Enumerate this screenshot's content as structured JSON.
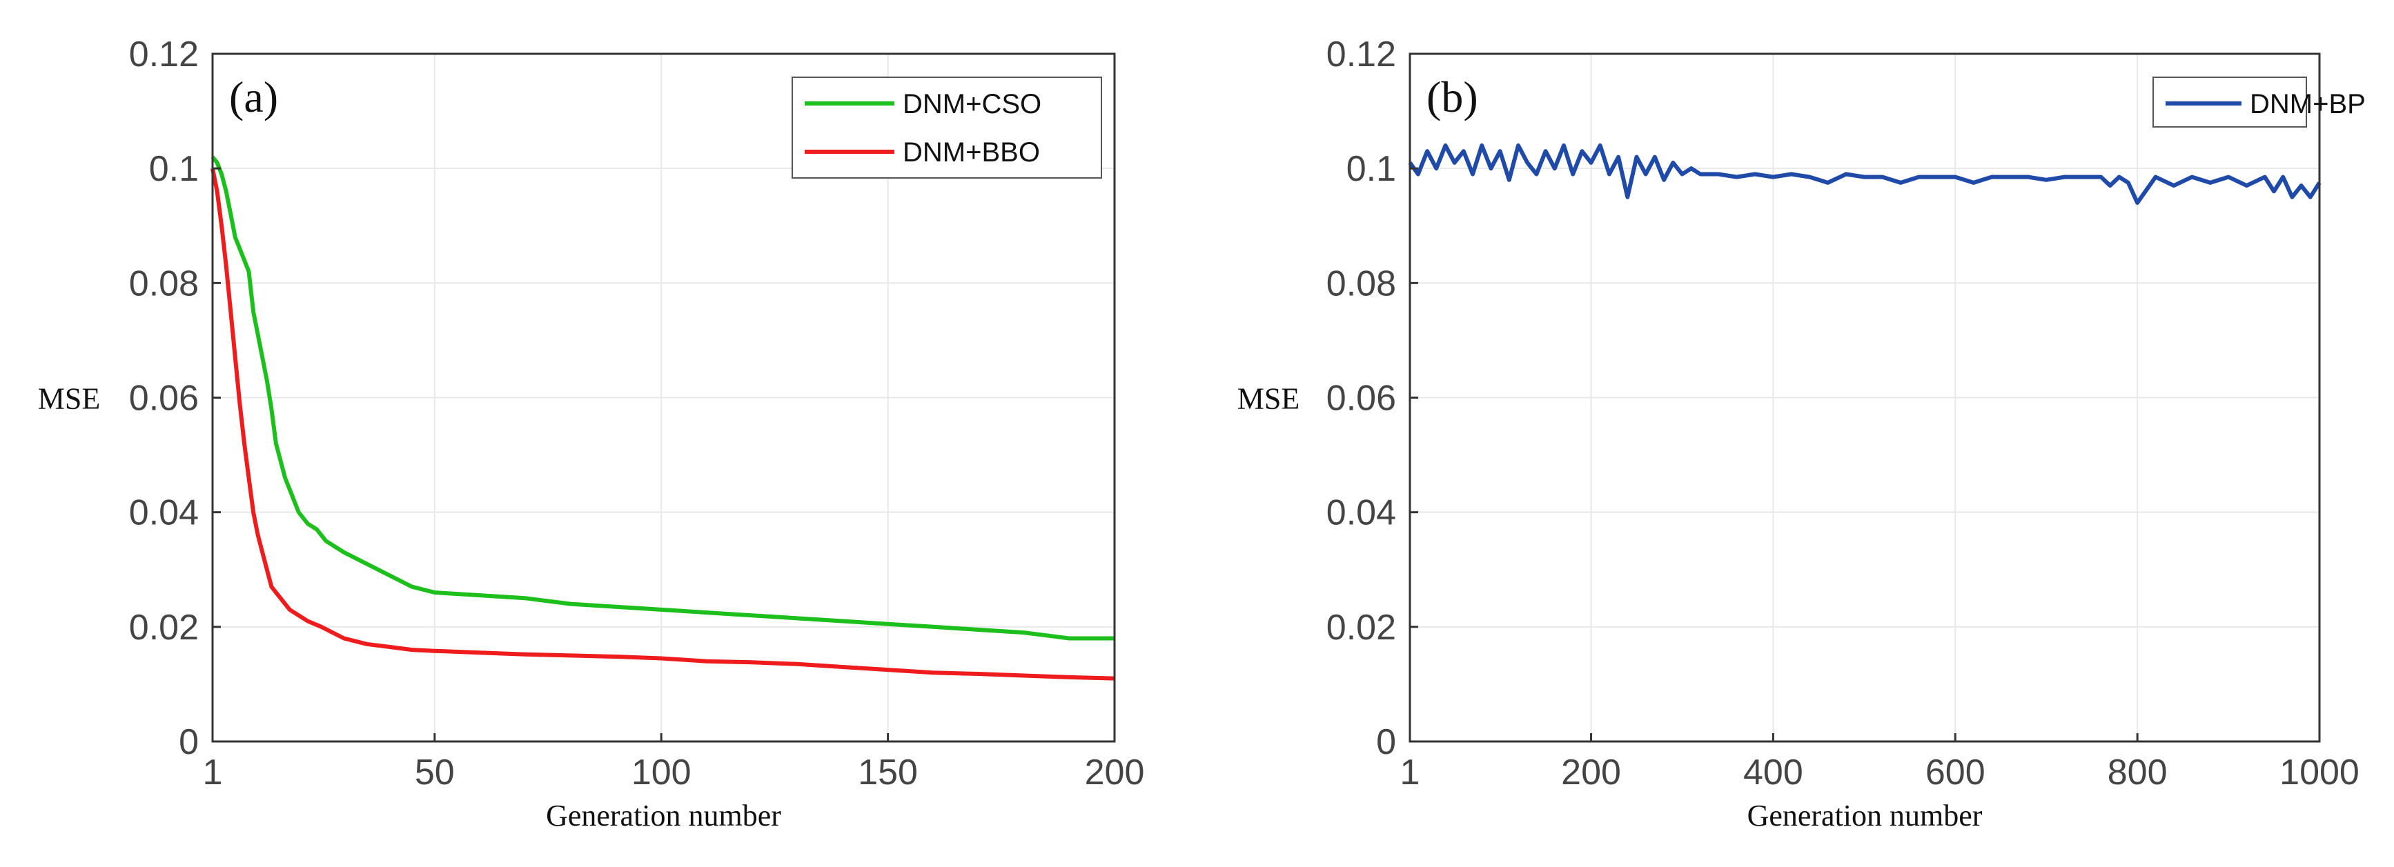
{
  "chart_data": [
    {
      "panel": "(a)",
      "type": "line",
      "xlabel": "Generation number",
      "ylabel": "MSE",
      "xlim": [
        1,
        200
      ],
      "ylim": [
        0,
        0.12
      ],
      "xticks": [
        1,
        50,
        100,
        150,
        200
      ],
      "yticks": [
        0,
        0.02,
        0.04,
        0.06,
        0.08,
        0.1,
        0.12
      ],
      "legend_position": "top-right",
      "series": [
        {
          "name": "DNM+CSO",
          "color": "#1dbf1d",
          "x": [
            1,
            2,
            3,
            4,
            5,
            6,
            7,
            8,
            9,
            10,
            11,
            12,
            13,
            14,
            15,
            16,
            17,
            18,
            19,
            20,
            22,
            24,
            26,
            28,
            30,
            35,
            40,
            45,
            50,
            60,
            70,
            80,
            90,
            100,
            110,
            120,
            130,
            140,
            150,
            160,
            170,
            180,
            190,
            200
          ],
          "y": [
            0.102,
            0.101,
            0.099,
            0.096,
            0.092,
            0.088,
            0.086,
            0.084,
            0.082,
            0.075,
            0.071,
            0.067,
            0.063,
            0.058,
            0.052,
            0.049,
            0.046,
            0.044,
            0.042,
            0.04,
            0.038,
            0.037,
            0.035,
            0.034,
            0.033,
            0.031,
            0.029,
            0.027,
            0.026,
            0.0255,
            0.025,
            0.024,
            0.0235,
            0.023,
            0.0225,
            0.022,
            0.0215,
            0.021,
            0.0205,
            0.02,
            0.0195,
            0.019,
            0.018,
            0.018
          ]
        },
        {
          "name": "DNM+BBO",
          "color": "#ee1c1c",
          "x": [
            1,
            2,
            3,
            4,
            5,
            6,
            7,
            8,
            9,
            10,
            11,
            12,
            13,
            14,
            15,
            16,
            18,
            20,
            22,
            25,
            30,
            35,
            40,
            45,
            50,
            60,
            70,
            80,
            90,
            100,
            110,
            120,
            130,
            140,
            150,
            160,
            170,
            180,
            190,
            200
          ],
          "y": [
            0.1,
            0.096,
            0.09,
            0.083,
            0.075,
            0.067,
            0.059,
            0.052,
            0.046,
            0.04,
            0.036,
            0.033,
            0.03,
            0.027,
            0.026,
            0.025,
            0.023,
            0.022,
            0.021,
            0.02,
            0.018,
            0.017,
            0.0165,
            0.016,
            0.0158,
            0.0155,
            0.0152,
            0.015,
            0.0148,
            0.0145,
            0.014,
            0.0138,
            0.0135,
            0.013,
            0.0125,
            0.012,
            0.0118,
            0.0115,
            0.0112,
            0.011
          ]
        }
      ]
    },
    {
      "panel": "(b)",
      "type": "line",
      "xlabel": "Generation number",
      "ylabel": "MSE",
      "xlim": [
        1,
        1000
      ],
      "ylim": [
        0,
        0.12
      ],
      "xticks": [
        1,
        200,
        400,
        600,
        800,
        1000
      ],
      "yticks": [
        0,
        0.02,
        0.04,
        0.06,
        0.08,
        0.1,
        0.12
      ],
      "legend_position": "top-right",
      "series": [
        {
          "name": "DNM+BP",
          "color": "#1f4aa8",
          "x": [
            1,
            10,
            20,
            30,
            40,
            50,
            60,
            70,
            80,
            90,
            100,
            110,
            120,
            130,
            140,
            150,
            160,
            170,
            180,
            190,
            200,
            210,
            220,
            230,
            240,
            250,
            260,
            270,
            280,
            290,
            300,
            310,
            320,
            340,
            360,
            380,
            400,
            420,
            440,
            460,
            480,
            500,
            520,
            540,
            560,
            580,
            600,
            620,
            640,
            660,
            680,
            700,
            720,
            740,
            760,
            770,
            780,
            790,
            800,
            820,
            840,
            860,
            880,
            900,
            920,
            940,
            950,
            960,
            970,
            980,
            990,
            1000
          ],
          "y": [
            0.101,
            0.099,
            0.103,
            0.1,
            0.104,
            0.101,
            0.103,
            0.099,
            0.104,
            0.1,
            0.103,
            0.098,
            0.104,
            0.101,
            0.099,
            0.103,
            0.1,
            0.104,
            0.099,
            0.103,
            0.101,
            0.104,
            0.099,
            0.102,
            0.095,
            0.102,
            0.099,
            0.102,
            0.098,
            0.101,
            0.099,
            0.1,
            0.099,
            0.099,
            0.0985,
            0.099,
            0.0985,
            0.099,
            0.0985,
            0.0975,
            0.099,
            0.0985,
            0.0985,
            0.0975,
            0.0985,
            0.0985,
            0.0985,
            0.0975,
            0.0985,
            0.0985,
            0.0985,
            0.098,
            0.0985,
            0.0985,
            0.0985,
            0.097,
            0.0985,
            0.0975,
            0.094,
            0.0985,
            0.097,
            0.0985,
            0.0975,
            0.0985,
            0.097,
            0.0985,
            0.096,
            0.0985,
            0.095,
            0.097,
            0.095,
            0.0975
          ]
        }
      ]
    }
  ]
}
